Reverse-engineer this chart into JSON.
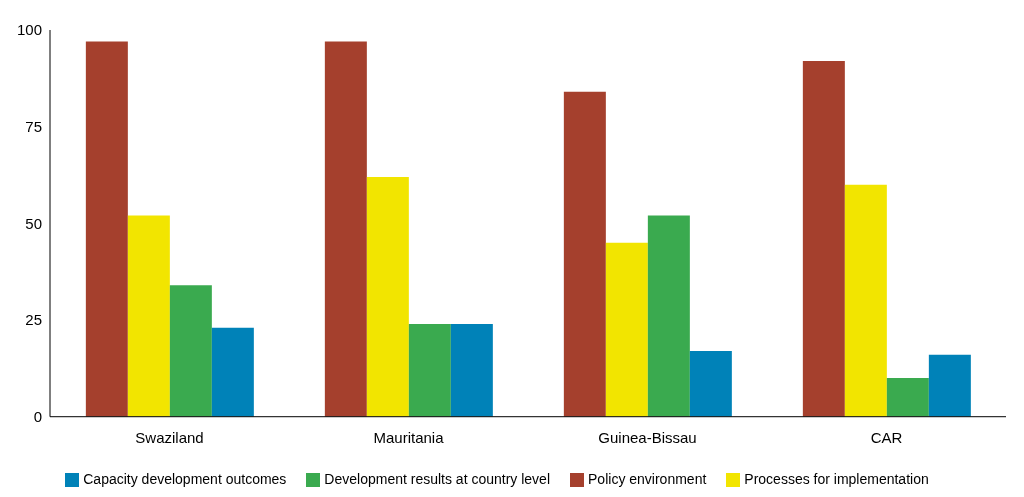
{
  "chart_data": {
    "type": "bar",
    "categories": [
      "Swaziland",
      "Mauritania",
      "Guinea-Bissau",
      "CAR"
    ],
    "series": [
      {
        "name": "Policy environment",
        "color": "#a5402d",
        "values": [
          97,
          97,
          84,
          92
        ]
      },
      {
        "name": "Processes for implementation",
        "color": "#f2e500",
        "values": [
          52,
          62,
          45,
          60
        ]
      },
      {
        "name": "Development results at country level",
        "color": "#3aaa4f",
        "values": [
          34,
          24,
          52,
          10
        ]
      },
      {
        "name": "Capacity development outcomes",
        "color": "#0082b8",
        "values": [
          23,
          24,
          17,
          16
        ]
      }
    ],
    "ylim": [
      0,
      100
    ],
    "yticks": [
      0,
      25,
      50,
      75,
      100
    ],
    "grid": false,
    "legend": "bottom"
  }
}
